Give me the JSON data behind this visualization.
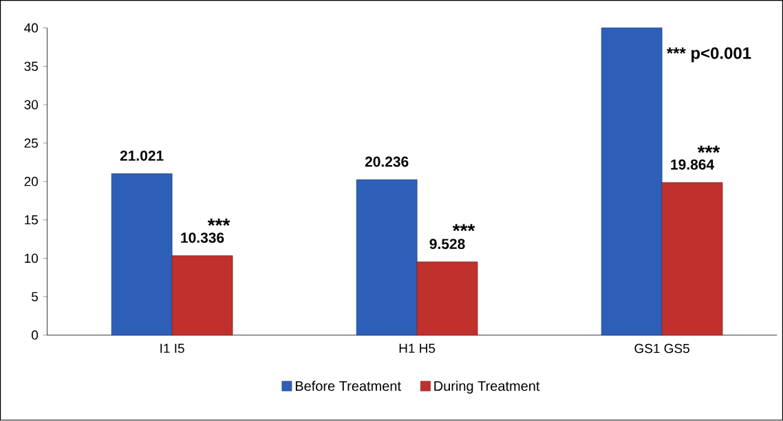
{
  "chart_data": {
    "type": "bar",
    "categories": [
      "I1   I5",
      "H1   H5",
      "GS1   GS5"
    ],
    "series": [
      {
        "name": "Before Treatment",
        "color": "#2e5fb8",
        "values": [
          21.021,
          20.236,
          40
        ],
        "value_labels": [
          "21.021",
          "20.236",
          null
        ]
      },
      {
        "name": "During Treatment",
        "color": "#c0302c",
        "values": [
          10.336,
          9.528,
          19.864
        ],
        "value_labels": [
          "10.336",
          "9.528",
          "19.864"
        ]
      }
    ],
    "annotations": [
      {
        "text": "***",
        "x": "I1   I5",
        "y": 14.3
      },
      {
        "text": "***",
        "x": "H1   H5",
        "y": 13.6
      },
      {
        "text": "***",
        "x": "GS1   GS5",
        "y": 23.8
      },
      {
        "text": "*** p<0.001",
        "x": "GS1   GS5",
        "y": 36.5
      }
    ],
    "ylim": [
      0,
      40
    ],
    "yticks": [
      0,
      5,
      10,
      15,
      20,
      25,
      30,
      35,
      40
    ],
    "grid": false,
    "legend": "bottom"
  }
}
